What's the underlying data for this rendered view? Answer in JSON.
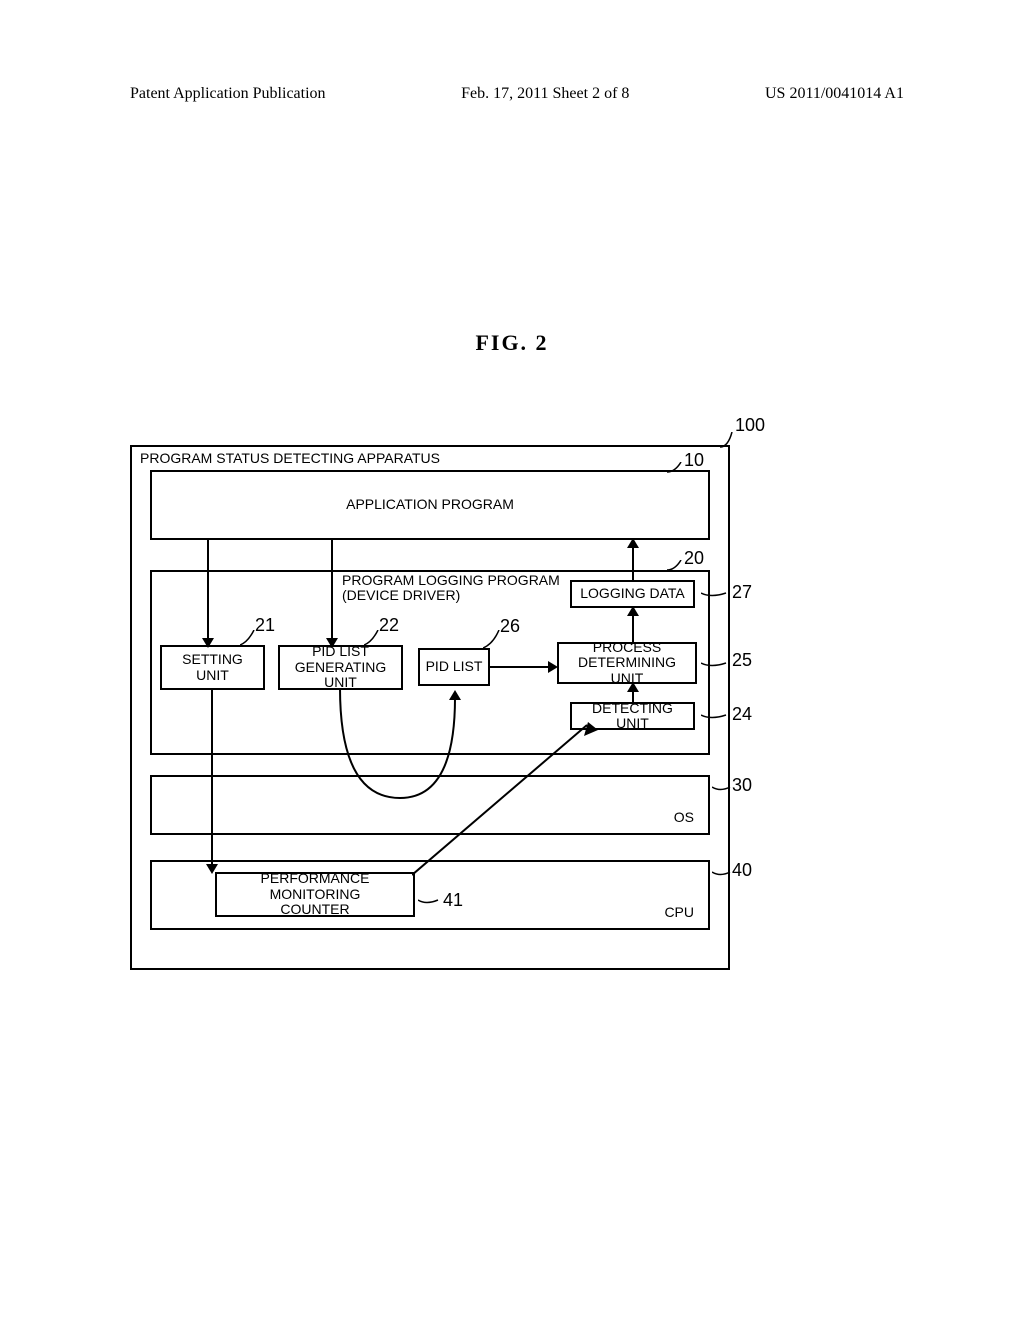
{
  "header": {
    "left": "Patent Application Publication",
    "center": "Feb. 17, 2011  Sheet 2 of 8",
    "right": "US 2011/0041014 A1"
  },
  "figure": {
    "title": "FIG. 2",
    "outer_label": "PROGRAM STATUS DETECTING APPARATUS",
    "blocks": {
      "app": "APPLICATION PROGRAM",
      "logging_prog": "PROGRAM LOGGING PROGRAM\n(DEVICE DRIVER)",
      "setting": "SETTING UNIT",
      "pid_gen": "PID LIST\nGENERATING UNIT",
      "pid_list": "PID LIST",
      "process_det": "PROCESS\nDETERMINING UNIT",
      "detecting": "DETECTING UNIT",
      "logging_data": "LOGGING DATA",
      "os": "OS",
      "cpu": "CPU",
      "perf": "PERFORMANCE MONITORING\nCOUNTER"
    },
    "refs": {
      "r100": "100",
      "r10": "10",
      "r20": "20",
      "r21": "21",
      "r22": "22",
      "r24": "24",
      "r25": "25",
      "r26": "26",
      "r27": "27",
      "r30": "30",
      "r40": "40",
      "r41": "41"
    }
  }
}
